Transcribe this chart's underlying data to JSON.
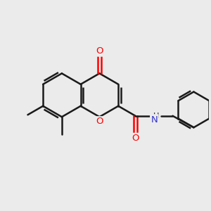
{
  "bg_color": "#ebebeb",
  "bond_color": "#1a1a1a",
  "oxygen_color": "#ff0000",
  "nitrogen_color": "#3333cc",
  "lw": 1.8,
  "figsize": [
    3.0,
    3.0
  ],
  "dpi": 100,
  "xlim": [
    0,
    10
  ],
  "ylim": [
    0,
    10
  ]
}
